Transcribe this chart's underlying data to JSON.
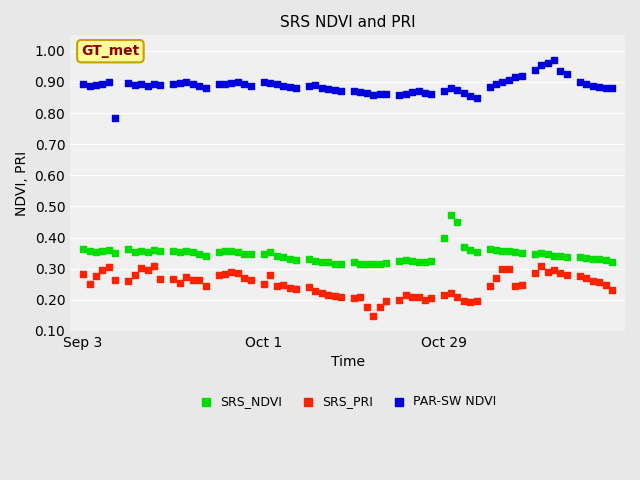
{
  "title": "SRS NDVI and PRI",
  "xlabel": "Time",
  "ylabel": "NDVI, PRI",
  "ylim": [
    0.1,
    1.05
  ],
  "yticks": [
    0.1,
    0.2,
    0.3,
    0.4,
    0.5,
    0.6,
    0.7,
    0.8,
    0.9,
    1.0
  ],
  "bg_color": "#e8e8e8",
  "plot_bg_color": "#f0f0f0",
  "annotation_text": "GT_met",
  "annotation_bg": "#ffff99",
  "annotation_border": "#c8a000",
  "annotation_text_color": "#8b0000",
  "srs_ndvi_color": "#00dd00",
  "srs_pri_color": "#ff2200",
  "par_sw_color": "#0000dd",
  "marker_size": 5,
  "srs_ndvi_x": [
    3,
    4,
    5,
    6,
    7,
    8,
    10,
    11,
    12,
    13,
    14,
    15,
    17,
    18,
    19,
    20,
    21,
    22,
    24,
    25,
    26,
    27,
    28,
    29,
    31,
    32,
    33,
    34,
    35,
    36,
    38,
    39,
    40,
    41,
    42,
    43,
    45,
    46,
    47,
    48,
    49,
    50,
    52,
    53,
    54,
    55,
    56,
    57,
    59,
    60,
    61,
    62,
    63,
    64,
    66,
    67,
    68,
    69,
    70,
    71,
    73,
    74,
    75,
    76,
    77,
    78,
    80,
    81,
    82,
    83,
    84,
    85
  ],
  "srs_ndvi_y": [
    0.362,
    0.358,
    0.355,
    0.357,
    0.36,
    0.35,
    0.362,
    0.355,
    0.358,
    0.353,
    0.36,
    0.358,
    0.358,
    0.355,
    0.356,
    0.352,
    0.348,
    0.34,
    0.352,
    0.356,
    0.356,
    0.353,
    0.348,
    0.346,
    0.346,
    0.355,
    0.34,
    0.336,
    0.33,
    0.328,
    0.33,
    0.326,
    0.322,
    0.32,
    0.316,
    0.316,
    0.32,
    0.316,
    0.315,
    0.314,
    0.316,
    0.318,
    0.323,
    0.328,
    0.326,
    0.322,
    0.322,
    0.325,
    0.398,
    0.472,
    0.45,
    0.368,
    0.36,
    0.355,
    0.363,
    0.36,
    0.358,
    0.356,
    0.352,
    0.35,
    0.348,
    0.35,
    0.346,
    0.342,
    0.34,
    0.338,
    0.336,
    0.334,
    0.332,
    0.33,
    0.328,
    0.32
  ],
  "srs_pri_x": [
    3,
    4,
    5,
    6,
    7,
    8,
    10,
    11,
    12,
    13,
    14,
    15,
    17,
    18,
    19,
    20,
    21,
    22,
    24,
    25,
    26,
    27,
    28,
    29,
    31,
    32,
    33,
    34,
    35,
    36,
    38,
    39,
    40,
    41,
    42,
    43,
    45,
    46,
    47,
    48,
    49,
    50,
    52,
    53,
    54,
    55,
    56,
    57,
    59,
    60,
    61,
    62,
    63,
    64,
    66,
    67,
    68,
    69,
    70,
    71,
    73,
    74,
    75,
    76,
    77,
    78,
    80,
    81,
    82,
    83,
    84,
    85
  ],
  "srs_pri_y": [
    0.284,
    0.252,
    0.275,
    0.296,
    0.305,
    0.262,
    0.26,
    0.278,
    0.302,
    0.295,
    0.31,
    0.268,
    0.268,
    0.255,
    0.272,
    0.265,
    0.262,
    0.245,
    0.28,
    0.282,
    0.29,
    0.285,
    0.27,
    0.262,
    0.25,
    0.28,
    0.245,
    0.248,
    0.238,
    0.235,
    0.24,
    0.228,
    0.222,
    0.215,
    0.212,
    0.21,
    0.205,
    0.21,
    0.175,
    0.148,
    0.175,
    0.195,
    0.2,
    0.215,
    0.21,
    0.21,
    0.2,
    0.205,
    0.215,
    0.22,
    0.208,
    0.195,
    0.192,
    0.195,
    0.245,
    0.27,
    0.298,
    0.3,
    0.245,
    0.248,
    0.285,
    0.308,
    0.29,
    0.295,
    0.285,
    0.278,
    0.276,
    0.27,
    0.26,
    0.258,
    0.248,
    0.232
  ],
  "par_sw_x": [
    3,
    4,
    5,
    6,
    7,
    8,
    10,
    11,
    12,
    13,
    14,
    15,
    17,
    18,
    19,
    20,
    21,
    22,
    24,
    25,
    26,
    27,
    28,
    29,
    31,
    32,
    33,
    34,
    35,
    36,
    38,
    39,
    40,
    41,
    42,
    43,
    45,
    46,
    47,
    48,
    49,
    50,
    52,
    53,
    54,
    55,
    56,
    57,
    59,
    60,
    61,
    62,
    63,
    64,
    66,
    67,
    68,
    69,
    70,
    71,
    73,
    74,
    75,
    76,
    77,
    78,
    80,
    81,
    82,
    83,
    84,
    85
  ],
  "par_sw_y": [
    0.892,
    0.888,
    0.89,
    0.895,
    0.9,
    0.785,
    0.898,
    0.89,
    0.892,
    0.888,
    0.895,
    0.89,
    0.892,
    0.898,
    0.9,
    0.895,
    0.888,
    0.882,
    0.895,
    0.892,
    0.898,
    0.9,
    0.895,
    0.888,
    0.9,
    0.896,
    0.892,
    0.888,
    0.885,
    0.882,
    0.888,
    0.89,
    0.882,
    0.878,
    0.875,
    0.872,
    0.87,
    0.868,
    0.865,
    0.858,
    0.86,
    0.862,
    0.858,
    0.862,
    0.868,
    0.87,
    0.865,
    0.862,
    0.87,
    0.88,
    0.875,
    0.865,
    0.855,
    0.848,
    0.885,
    0.895,
    0.9,
    0.908,
    0.915,
    0.92,
    0.94,
    0.955,
    0.96,
    0.97,
    0.935,
    0.925,
    0.9,
    0.895,
    0.888,
    0.885,
    0.882,
    0.88
  ],
  "xtick_positions": [
    3,
    31,
    59
  ],
  "xtick_labels": [
    "Sep 3",
    "Oct 1",
    "Oct 29"
  ]
}
